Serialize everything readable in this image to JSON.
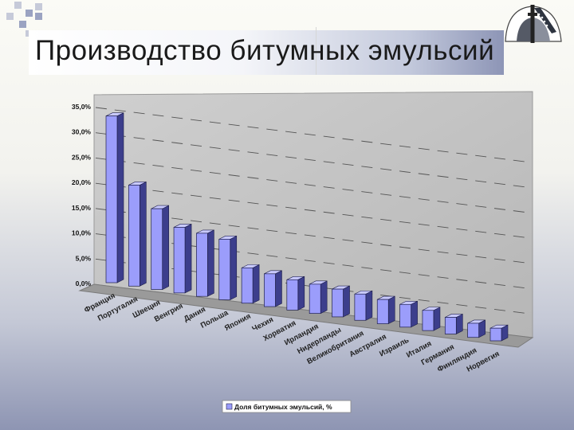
{
  "slide": {
    "title": "Производство битумных эмульсий"
  },
  "colors": {
    "bar_front": "#9b9dfb",
    "bar_side": "#3c3e8c",
    "bar_top": "#c9caff",
    "wall": "#c2c2c2",
    "floor": "#9a9a9a",
    "accent": "#8d95b6"
  },
  "chart_data": {
    "type": "bar",
    "view": "3d",
    "categories": [
      "Франция",
      "Португалия",
      "Швеция",
      "Венгрия",
      "Дания",
      "Польша",
      "Япония",
      "Чехия",
      "Хорватия",
      "Ирландия",
      "Нидерланды",
      "Великобритания",
      "Австралия",
      "Израиль",
      "Италия",
      "Германия",
      "Финляндия",
      "Норвегия"
    ],
    "series": [
      {
        "name": "Доля битумных эмульсий, %",
        "values": [
          33.0,
          20.0,
          16.0,
          13.0,
          12.5,
          12.0,
          7.0,
          6.5,
          6.0,
          5.8,
          5.5,
          5.2,
          4.8,
          4.5,
          4.0,
          3.3,
          2.8,
          2.5
        ]
      }
    ],
    "y_ticks": [
      "35,0%",
      "30,0%",
      "25,0%",
      "20,0%",
      "15,0%",
      "10,0%",
      "5,0%",
      "0,0%"
    ],
    "ylim": [
      0,
      35
    ],
    "grid": true,
    "legend_position": "bottom"
  }
}
